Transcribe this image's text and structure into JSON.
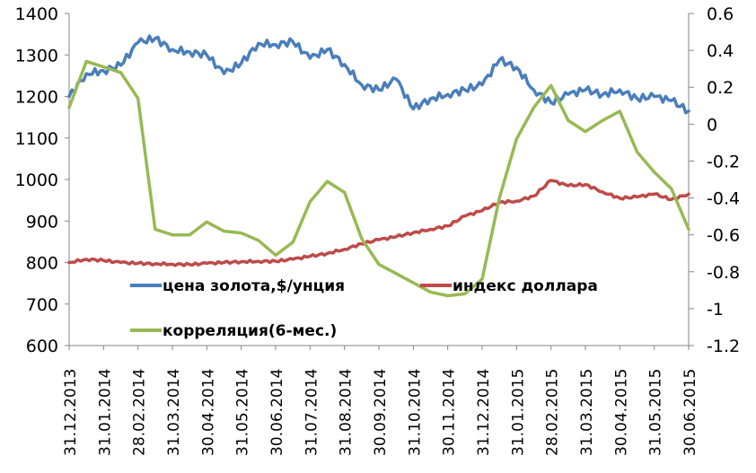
{
  "chart_data": {
    "type": "line",
    "title": "",
    "xlabel": "",
    "ylabel_left": "",
    "ylabel_right": "",
    "x_tick_labels": [
      "31.12.2013",
      "31.01.2014",
      "28.02.2014",
      "31.03.2014",
      "30.04.2014",
      "31.05.2014",
      "30.06.2014",
      "31.07.2014",
      "31.08.2014",
      "30.09.2014",
      "31.10.2014",
      "30.11.2014",
      "31.12.2014",
      "31.01.2015",
      "28.02.2015",
      "31.03.2015",
      "30.04.2015",
      "31.05.2015",
      "30.06.2015"
    ],
    "y_left": {
      "min": 600,
      "max": 1400,
      "ticks": [
        "600",
        "700",
        "800",
        "900",
        "1000",
        "1100",
        "1200",
        "1300",
        "1400"
      ]
    },
    "y_right": {
      "min": -1.2,
      "max": 0.6,
      "ticks": [
        "-1.2",
        "-1",
        "-0.8",
        "-0.6",
        "-0.4",
        "-0.2",
        "0",
        "0.2",
        "0.4",
        "0.6"
      ]
    },
    "grid": false,
    "legend_position": "inside-bottom",
    "x_months": [
      0,
      0.5,
      1,
      1.5,
      2,
      2.5,
      3,
      3.5,
      4,
      4.5,
      5,
      5.5,
      6,
      6.5,
      7,
      7.5,
      8,
      8.5,
      9,
      9.5,
      10,
      10.5,
      11,
      11.5,
      12,
      12.5,
      13,
      13.5,
      14,
      14.5,
      15,
      15.5,
      16,
      16.5,
      17,
      17.5,
      18
    ],
    "series": [
      {
        "name": "цена золота,$/унция",
        "axis": "left",
        "color": "#4a7ebb",
        "values": [
          1200,
          1255,
          1262,
          1275,
          1330,
          1340,
          1313,
          1307,
          1300,
          1255,
          1280,
          1328,
          1325,
          1332,
          1292,
          1313,
          1277,
          1228,
          1216,
          1242,
          1170,
          1195,
          1205,
          1216,
          1228,
          1288,
          1270,
          1216,
          1185,
          1205,
          1216,
          1205,
          1216,
          1195,
          1200,
          1190,
          1165
        ]
      },
      {
        "name": "индекс доллара",
        "axis": "left",
        "color": "#be4b48",
        "values": [
          800,
          808,
          805,
          800,
          798,
          797,
          796,
          795,
          798,
          800,
          802,
          803,
          803,
          808,
          815,
          822,
          832,
          845,
          855,
          862,
          872,
          880,
          888,
          912,
          925,
          945,
          948,
          960,
          998,
          985,
          988,
          970,
          955,
          958,
          965,
          952,
          965
        ]
      },
      {
        "name": "корреляция(6-мес.)",
        "axis": "right",
        "color": "#98b954",
        "values": [
          0.09,
          0.34,
          0.31,
          0.28,
          0.14,
          -0.57,
          -0.6,
          -0.6,
          -0.53,
          -0.58,
          -0.59,
          -0.63,
          -0.71,
          -0.64,
          -0.42,
          -0.31,
          -0.37,
          -0.62,
          -0.76,
          -0.81,
          -0.86,
          -0.91,
          -0.93,
          -0.92,
          -0.84,
          -0.4,
          -0.08,
          0.09,
          0.21,
          0.02,
          -0.04,
          0.02,
          0.07,
          -0.15,
          -0.26,
          -0.35,
          -0.57
        ]
      }
    ]
  },
  "legend": {
    "items": [
      {
        "label": "цена золота,$/унция",
        "color": "#4a7ebb"
      },
      {
        "label": "индекс доллара",
        "color": "#be4b48"
      },
      {
        "label": "корреляция(6-мес.)",
        "color": "#98b954"
      }
    ]
  }
}
